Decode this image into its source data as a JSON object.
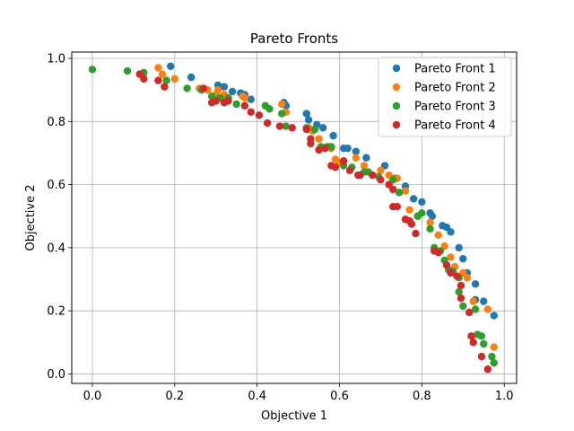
{
  "chart_data": {
    "type": "scatter",
    "title": "Pareto Fronts",
    "xlabel": "Objective 1",
    "ylabel": "Objective 2",
    "xlim": [
      -0.05,
      1.03
    ],
    "ylim": [
      -0.03,
      1.02
    ],
    "xticks": [
      0.0,
      0.2,
      0.4,
      0.6,
      0.8,
      1.0
    ],
    "xtick_labels": [
      "0.0",
      "0.2",
      "0.4",
      "0.6",
      "0.8",
      "1.0"
    ],
    "yticks": [
      0.0,
      0.2,
      0.4,
      0.6,
      0.8,
      1.0
    ],
    "ytick_labels": [
      "0.0",
      "0.2",
      "0.4",
      "0.6",
      "0.8",
      "1.0"
    ],
    "grid": true,
    "legend_position": "top-right",
    "series": [
      {
        "name": "Pareto Front 1",
        "color": "#1f77b4",
        "points": [
          [
            0.19,
            0.975
          ],
          [
            0.24,
            0.94
          ],
          [
            0.305,
            0.915
          ],
          [
            0.32,
            0.91
          ],
          [
            0.34,
            0.895
          ],
          [
            0.36,
            0.89
          ],
          [
            0.37,
            0.885
          ],
          [
            0.385,
            0.87
          ],
          [
            0.465,
            0.86
          ],
          [
            0.47,
            0.85
          ],
          [
            0.52,
            0.825
          ],
          [
            0.525,
            0.805
          ],
          [
            0.545,
            0.79
          ],
          [
            0.56,
            0.78
          ],
          [
            0.585,
            0.755
          ],
          [
            0.61,
            0.715
          ],
          [
            0.62,
            0.715
          ],
          [
            0.64,
            0.705
          ],
          [
            0.665,
            0.685
          ],
          [
            0.71,
            0.66
          ],
          [
            0.735,
            0.62
          ],
          [
            0.76,
            0.595
          ],
          [
            0.78,
            0.555
          ],
          [
            0.8,
            0.545
          ],
          [
            0.82,
            0.51
          ],
          [
            0.825,
            0.5
          ],
          [
            0.85,
            0.47
          ],
          [
            0.86,
            0.465
          ],
          [
            0.87,
            0.45
          ],
          [
            0.89,
            0.4
          ],
          [
            0.9,
            0.365
          ],
          [
            0.91,
            0.32
          ],
          [
            0.93,
            0.285
          ],
          [
            0.93,
            0.235
          ],
          [
            0.95,
            0.23
          ],
          [
            0.975,
            0.185
          ]
        ]
      },
      {
        "name": "Pareto Front 2",
        "color": "#ff7f0e",
        "points": [
          [
            0.16,
            0.97
          ],
          [
            0.17,
            0.95
          ],
          [
            0.2,
            0.935
          ],
          [
            0.26,
            0.905
          ],
          [
            0.28,
            0.9
          ],
          [
            0.3,
            0.885
          ],
          [
            0.305,
            0.9
          ],
          [
            0.32,
            0.885
          ],
          [
            0.365,
            0.88
          ],
          [
            0.37,
            0.875
          ],
          [
            0.46,
            0.855
          ],
          [
            0.47,
            0.83
          ],
          [
            0.525,
            0.78
          ],
          [
            0.535,
            0.77
          ],
          [
            0.55,
            0.745
          ],
          [
            0.575,
            0.72
          ],
          [
            0.58,
            0.715
          ],
          [
            0.59,
            0.68
          ],
          [
            0.6,
            0.67
          ],
          [
            0.64,
            0.685
          ],
          [
            0.66,
            0.66
          ],
          [
            0.7,
            0.645
          ],
          [
            0.72,
            0.63
          ],
          [
            0.74,
            0.62
          ],
          [
            0.76,
            0.58
          ],
          [
            0.77,
            0.52
          ],
          [
            0.79,
            0.5
          ],
          [
            0.82,
            0.48
          ],
          [
            0.84,
            0.44
          ],
          [
            0.855,
            0.405
          ],
          [
            0.87,
            0.37
          ],
          [
            0.88,
            0.34
          ],
          [
            0.9,
            0.32
          ],
          [
            0.91,
            0.305
          ],
          [
            0.925,
            0.23
          ],
          [
            0.96,
            0.205
          ],
          [
            0.975,
            0.085
          ]
        ]
      },
      {
        "name": "Pareto Front 3",
        "color": "#2ca02c",
        "points": [
          [
            0.0,
            0.965
          ],
          [
            0.085,
            0.96
          ],
          [
            0.125,
            0.955
          ],
          [
            0.18,
            0.93
          ],
          [
            0.23,
            0.905
          ],
          [
            0.265,
            0.9
          ],
          [
            0.29,
            0.88
          ],
          [
            0.31,
            0.875
          ],
          [
            0.33,
            0.875
          ],
          [
            0.35,
            0.855
          ],
          [
            0.42,
            0.85
          ],
          [
            0.43,
            0.84
          ],
          [
            0.46,
            0.825
          ],
          [
            0.47,
            0.785
          ],
          [
            0.52,
            0.78
          ],
          [
            0.54,
            0.775
          ],
          [
            0.555,
            0.72
          ],
          [
            0.57,
            0.72
          ],
          [
            0.58,
            0.72
          ],
          [
            0.61,
            0.66
          ],
          [
            0.63,
            0.655
          ],
          [
            0.66,
            0.64
          ],
          [
            0.67,
            0.64
          ],
          [
            0.695,
            0.625
          ],
          [
            0.73,
            0.615
          ],
          [
            0.745,
            0.575
          ],
          [
            0.79,
            0.5
          ],
          [
            0.8,
            0.51
          ],
          [
            0.82,
            0.46
          ],
          [
            0.83,
            0.4
          ],
          [
            0.845,
            0.39
          ],
          [
            0.855,
            0.36
          ],
          [
            0.865,
            0.33
          ],
          [
            0.875,
            0.325
          ],
          [
            0.89,
            0.305
          ],
          [
            0.89,
            0.26
          ],
          [
            0.9,
            0.215
          ],
          [
            0.93,
            0.205
          ],
          [
            0.935,
            0.125
          ],
          [
            0.945,
            0.12
          ],
          [
            0.95,
            0.095
          ],
          [
            0.97,
            0.055
          ],
          [
            0.975,
            0.035
          ]
        ]
      },
      {
        "name": "Pareto Front 4",
        "color": "#d62728",
        "points": [
          [
            0.115,
            0.95
          ],
          [
            0.125,
            0.935
          ],
          [
            0.16,
            0.93
          ],
          [
            0.175,
            0.91
          ],
          [
            0.27,
            0.905
          ],
          [
            0.29,
            0.86
          ],
          [
            0.3,
            0.865
          ],
          [
            0.32,
            0.86
          ],
          [
            0.33,
            0.865
          ],
          [
            0.37,
            0.85
          ],
          [
            0.385,
            0.83
          ],
          [
            0.405,
            0.82
          ],
          [
            0.425,
            0.795
          ],
          [
            0.455,
            0.785
          ],
          [
            0.485,
            0.78
          ],
          [
            0.52,
            0.775
          ],
          [
            0.53,
            0.745
          ],
          [
            0.53,
            0.73
          ],
          [
            0.55,
            0.71
          ],
          [
            0.565,
            0.715
          ],
          [
            0.58,
            0.66
          ],
          [
            0.59,
            0.655
          ],
          [
            0.61,
            0.675
          ],
          [
            0.625,
            0.645
          ],
          [
            0.645,
            0.63
          ],
          [
            0.65,
            0.63
          ],
          [
            0.68,
            0.63
          ],
          [
            0.7,
            0.615
          ],
          [
            0.72,
            0.6
          ],
          [
            0.73,
            0.585
          ],
          [
            0.73,
            0.53
          ],
          [
            0.74,
            0.53
          ],
          [
            0.76,
            0.49
          ],
          [
            0.77,
            0.485
          ],
          [
            0.775,
            0.475
          ],
          [
            0.785,
            0.445
          ],
          [
            0.83,
            0.39
          ],
          [
            0.84,
            0.385
          ],
          [
            0.86,
            0.345
          ],
          [
            0.87,
            0.32
          ],
          [
            0.885,
            0.31
          ],
          [
            0.895,
            0.28
          ],
          [
            0.895,
            0.24
          ],
          [
            0.915,
            0.195
          ],
          [
            0.92,
            0.12
          ],
          [
            0.925,
            0.1
          ],
          [
            0.945,
            0.055
          ],
          [
            0.96,
            0.015
          ]
        ]
      }
    ]
  }
}
